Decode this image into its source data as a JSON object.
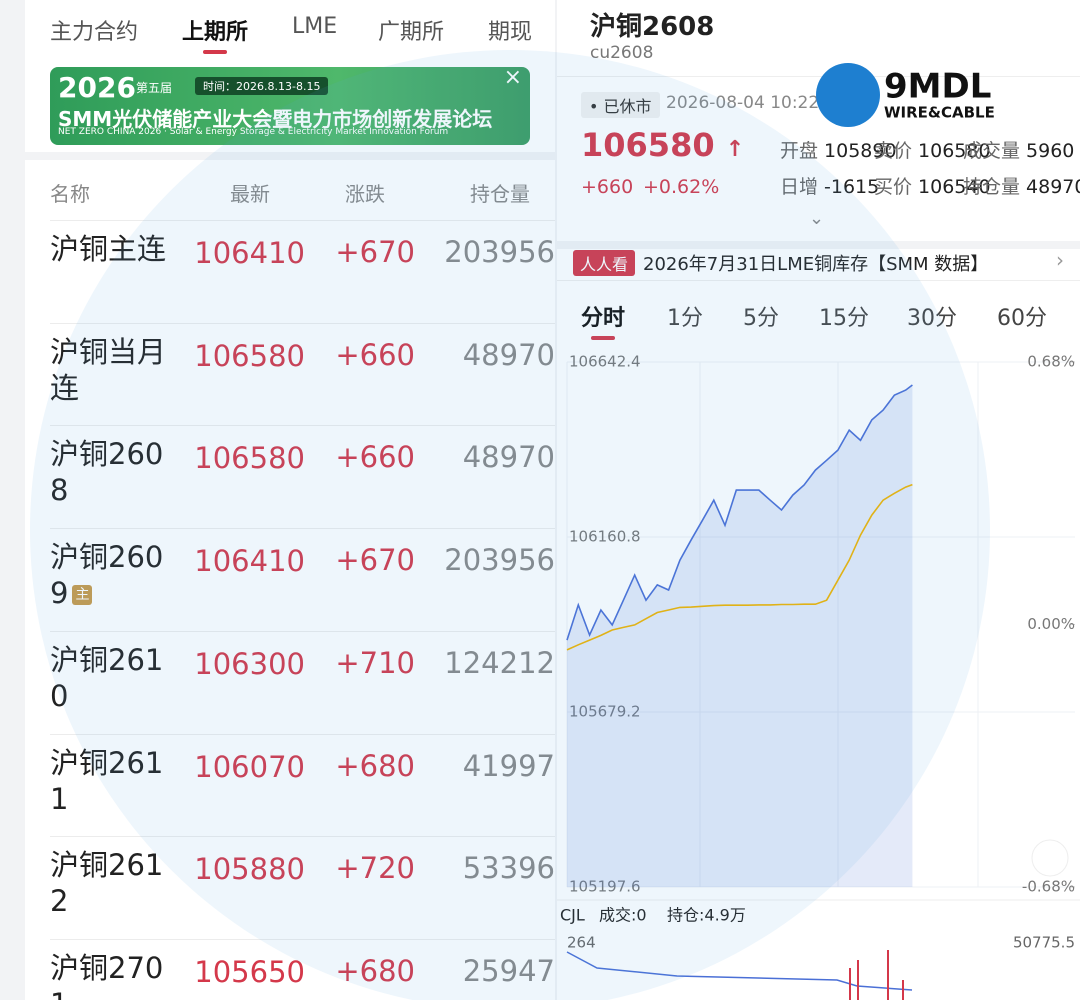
{
  "tabs": [
    "主力合约",
    "上期所",
    "LME",
    "广期所",
    "期现"
  ],
  "banner": {
    "year": "2026",
    "edition": "第五届",
    "time": "时间：2026.8.13-8.15",
    "title": "SMM光伏储能产业大会暨电力市场创新发展论坛",
    "subtitle": "NET ZERO CHINA 2026 · Solar & Energy Storage & Electricity Market Innovation Forum"
  },
  "table": {
    "header": [
      "名称",
      "最新",
      "涨跌",
      "持仓量"
    ],
    "rows": [
      {
        "name": "沪铜主连",
        "price": "106410",
        "change": "+670",
        "oi": "203956"
      },
      {
        "name": "沪铜当月连",
        "price": "106580",
        "change": "+660",
        "oi": "48970"
      },
      {
        "name": "沪铜2608",
        "price": "106580",
        "change": "+660",
        "oi": "48970"
      },
      {
        "name": "沪铜2609",
        "badge": "主",
        "price": "106410",
        "change": "+670",
        "oi": "203956"
      },
      {
        "name": "沪铜2610",
        "price": "106300",
        "change": "+710",
        "oi": "124212"
      },
      {
        "name": "沪铜2611",
        "price": "106070",
        "change": "+680",
        "oi": "41997"
      },
      {
        "name": "沪铜2612",
        "price": "105880",
        "change": "+720",
        "oi": "53396"
      },
      {
        "name": "沪铜2701",
        "price": "105650",
        "change": "+680",
        "oi": "25947"
      }
    ]
  },
  "contract": {
    "name": "沪铜2608",
    "code": "cu2608",
    "status": "已休市",
    "time": "2026-08-04 10:22",
    "price": "106580",
    "change": "+660",
    "pct": "+0.62%",
    "stats": [
      {
        "label": "开盘",
        "value": "105890"
      },
      {
        "label": "卖价",
        "value": "106580"
      },
      {
        "label": "成交量",
        "value": "5960"
      },
      {
        "label": "日增",
        "value": "-1615"
      },
      {
        "label": "买价",
        "value": "106540"
      },
      {
        "label": "持仓量",
        "value": "48970"
      }
    ]
  },
  "watermark": {
    "brand": "9MDL",
    "sub": "WIRE&CABLE"
  },
  "news": {
    "tag": "人人看",
    "text": "2026年7月31日LME铜库存【SMM 数据】"
  },
  "periods": [
    "分时",
    "1分",
    "5分",
    "15分",
    "30分",
    "60分"
  ],
  "chart_data": {
    "type": "line",
    "x": [
      0,
      5,
      10,
      15,
      20,
      25,
      30,
      35,
      40,
      45,
      50,
      55,
      60,
      65,
      70,
      75,
      80,
      85,
      90,
      95,
      100,
      105,
      110,
      115,
      120,
      125,
      130,
      135,
      140,
      145,
      150,
      153
    ],
    "xlim": [
      0,
      225
    ],
    "series": [
      {
        "color": "#4a6fd6",
        "values": [
          105877,
          105974,
          105891,
          105960,
          105919,
          105987,
          106056,
          105987,
          106029,
          106015,
          106097,
          106153,
          106207,
          106262,
          106193,
          106290,
          106290,
          106290,
          106262,
          106235,
          106276,
          106304,
          106345,
          106372,
          106400,
          106455,
          106427,
          106483,
          106510,
          106551,
          106565,
          106579
        ]
      },
      {
        "color": "#f0b400",
        "values": [
          105850,
          105864,
          105877,
          105890,
          105905,
          105912,
          105919,
          105936,
          105953,
          105960,
          105967,
          105968,
          105970,
          105972,
          105973,
          105973,
          105973,
          105974,
          105974,
          105975,
          105975,
          105976,
          105976,
          105987,
          106042,
          106097,
          106166,
          106221,
          106262,
          106281,
          106298,
          106305
        ]
      }
    ],
    "ylim": [
      105197.6,
      106642.4
    ],
    "yticks": [
      105197.6,
      105679.2,
      106160.8,
      106642.4
    ],
    "y2lim": [
      -0.68,
      0.68
    ],
    "y2ticks": [
      {
        "value": -0.68,
        "label": "-0.68%"
      },
      {
        "value": 0,
        "label": "0.00%"
      },
      {
        "value": 0.68,
        "label": "0.68%"
      }
    ]
  },
  "volume": {
    "label": "CJL",
    "vol": "成交:0",
    "oi": "持仓:4.9万",
    "left_max": "264",
    "right_max": "50775.5"
  }
}
